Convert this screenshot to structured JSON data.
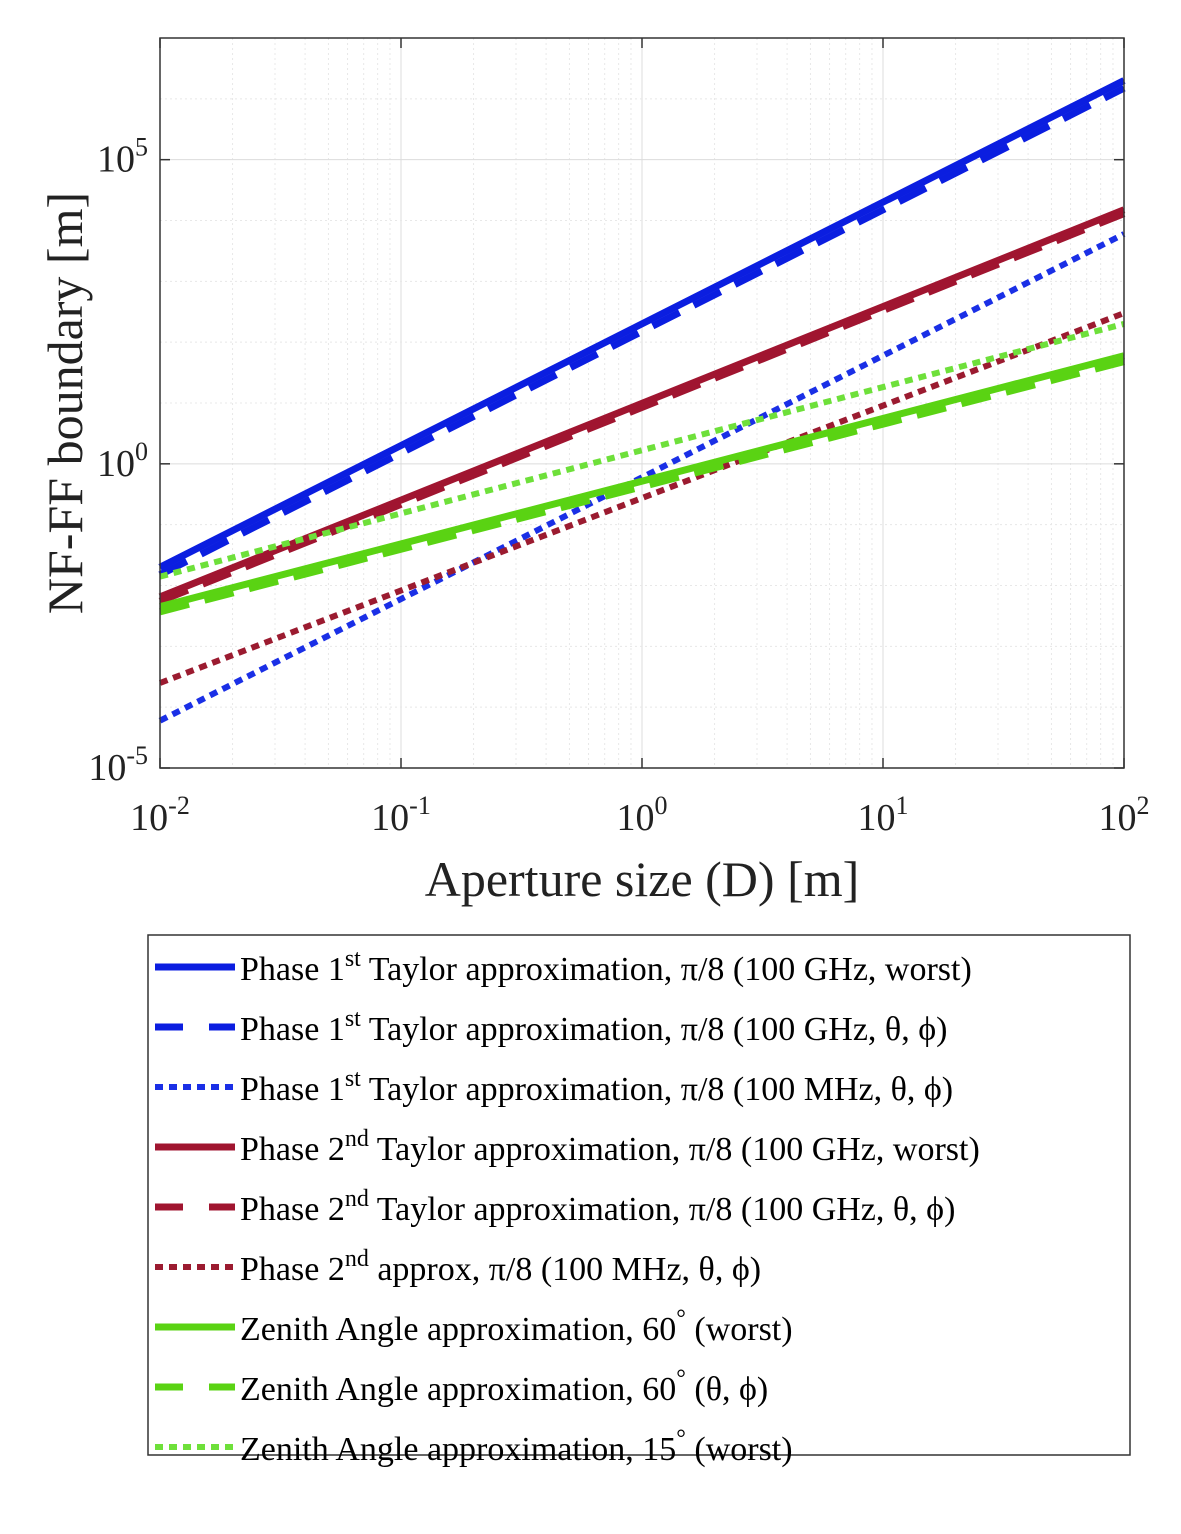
{
  "chart_data": {
    "type": "line",
    "xlabel": "Aperture size (D) [m]",
    "ylabel": "NF-FF boundary [m]",
    "xscale": "log",
    "yscale": "log",
    "xlim": [
      0.01,
      100
    ],
    "ylim": [
      1e-05,
      10000000
    ],
    "grid": true,
    "legend_position": "below",
    "x_ticks": [
      {
        "value": 0.01,
        "base": "10",
        "exp": "-2"
      },
      {
        "value": 0.1,
        "base": "10",
        "exp": "-1"
      },
      {
        "value": 1,
        "base": "10",
        "exp": "0"
      },
      {
        "value": 10,
        "base": "10",
        "exp": "1"
      },
      {
        "value": 100,
        "base": "10",
        "exp": "2"
      }
    ],
    "y_ticks": [
      {
        "value": 1e-05,
        "base": "10",
        "exp": "-5"
      },
      {
        "value": 1,
        "base": "10",
        "exp": "0"
      },
      {
        "value": 100000,
        "base": "10",
        "exp": "5"
      }
    ],
    "series": [
      {
        "pre": "Phase 1",
        "sup": "st",
        "post": " Taylor approximation, π/8 (100 GHz, worst)",
        "color": "#0b1ee0",
        "style": "solid",
        "x": [
          0.01,
          100
        ],
        "y": [
          0.02,
          2000000
        ]
      },
      {
        "pre": "Phase 1",
        "sup": "st",
        "post": " Taylor approximation, π/8 (100 GHz, θ, ϕ)",
        "color": "#0b1ee0",
        "style": "dashed",
        "x": [
          0.01,
          100
        ],
        "y": [
          0.015,
          1500000
        ]
      },
      {
        "pre": "Phase 1",
        "sup": "st",
        "post": " Taylor approximation, π/8 (100 MHz, θ, ϕ)",
        "color": "#1a2fe6",
        "style": "dotted",
        "x": [
          0.01,
          100
        ],
        "y": [
          6e-05,
          6000
        ]
      },
      {
        "pre": "Phase 2",
        "sup": "nd",
        "post": " Taylor approximation, π/8 (100 GHz, worst)",
        "color": "#a01530",
        "style": "solid",
        "x": [
          0.01,
          100
        ],
        "y": [
          0.0065,
          15000
        ]
      },
      {
        "pre": "Phase 2",
        "sup": "nd",
        "post": " Taylor approximation, π/8 (100 GHz, θ, ϕ)",
        "color": "#a01530",
        "style": "dashed",
        "x": [
          0.01,
          100
        ],
        "y": [
          0.0055,
          13000
        ]
      },
      {
        "pre": "Phase 2",
        "sup": "nd",
        "post": " approx, π/8 (100 MHz, θ, ϕ)",
        "color": "#9b1b30",
        "style": "dotted",
        "x": [
          0.01,
          100
        ],
        "y": [
          0.00025,
          300
        ]
      },
      {
        "pre": "Zenith Angle approximation, 60",
        "sup": "°",
        "post": " (worst)",
        "color": "#5ad313",
        "style": "solid",
        "x": [
          0.01,
          100
        ],
        "y": [
          0.0045,
          60
        ]
      },
      {
        "pre": "Zenith Angle approximation, 60",
        "sup": "°",
        "post": " (θ, ϕ)",
        "color": "#5ad313",
        "style": "dashed",
        "x": [
          0.01,
          100
        ],
        "y": [
          0.0037,
          48
        ]
      },
      {
        "pre": "Zenith Angle approximation, 15",
        "sup": "°",
        "post": " (worst)",
        "color": "#6ee03a",
        "style": "dotted",
        "x": [
          0.01,
          100
        ],
        "y": [
          0.014,
          200
        ]
      }
    ]
  }
}
